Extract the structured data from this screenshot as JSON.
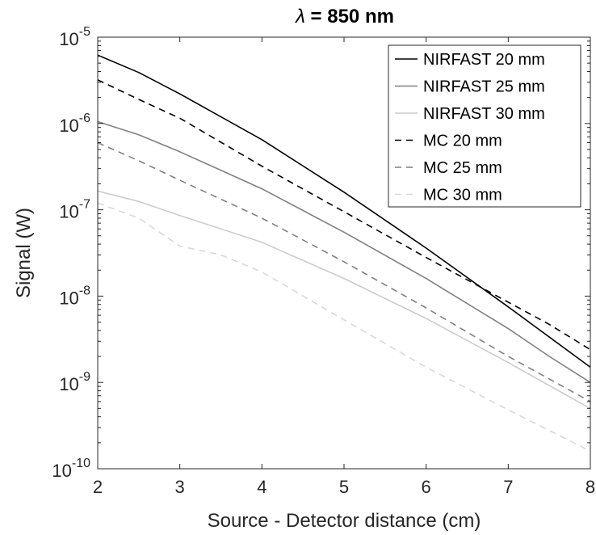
{
  "chart_data": {
    "type": "line",
    "title_symbol": "λ",
    "title_rest": " = 850 nm",
    "xlabel": "Source - Detector distance (cm)",
    "ylabel": "Signal (W)",
    "xlim": [
      2,
      8
    ],
    "ylim": [
      1e-10,
      1e-05
    ],
    "yscale": "log",
    "grid": false,
    "legend_position": "top-right",
    "x_ticks": [
      2,
      3,
      4,
      5,
      6,
      7,
      8
    ],
    "y_tick_exponents": [
      -10,
      -9,
      -8,
      -7,
      -6,
      -5
    ],
    "y_tick_base": "10",
    "series": [
      {
        "name": "NIRFAST 20 mm",
        "color": "#000000",
        "dash": "solid",
        "x": [
          2,
          2.5,
          3,
          4,
          5,
          6,
          7,
          8
        ],
        "y": [
          6.2e-06,
          3.9e-06,
          2.2e-06,
          6.5e-07,
          1.6e-07,
          3.6e-08,
          7.5e-09,
          1.5e-09
        ]
      },
      {
        "name": "NIRFAST 25 mm",
        "color": "#808080",
        "dash": "solid",
        "x": [
          2,
          2.5,
          3,
          4,
          5,
          6,
          7,
          7.5,
          8
        ],
        "y": [
          1.05e-06,
          7.4e-07,
          4.7e-07,
          1.75e-07,
          5.5e-08,
          1.6e-08,
          4.2e-09,
          2e-09,
          1e-09
        ]
      },
      {
        "name": "NIRFAST 30 mm",
        "color": "#cccccc",
        "dash": "solid",
        "x": [
          2,
          2.5,
          3,
          4,
          5,
          6,
          7,
          8
        ],
        "y": [
          1.65e-07,
          1.25e-07,
          8.6e-08,
          4.2e-08,
          1.6e-08,
          5.5e-09,
          1.7e-09,
          5e-10
        ]
      },
      {
        "name": "MC 20 mm",
        "color": "#000000",
        "dash": "dashed",
        "x": [
          2,
          2.5,
          3,
          4,
          5,
          6,
          7,
          7.5,
          8
        ],
        "y": [
          3.2e-06,
          1.9e-06,
          1.15e-06,
          3.2e-07,
          9.5e-08,
          2.8e-08,
          8.5e-09,
          4.7e-09,
          2.4e-09
        ]
      },
      {
        "name": "MC 25 mm",
        "color": "#808080",
        "dash": "dashed",
        "x": [
          2,
          2.5,
          3,
          4,
          5,
          6,
          7,
          8
        ],
        "y": [
          6e-07,
          3.7e-07,
          2.2e-07,
          8e-08,
          2.5e-08,
          7.3e-09,
          2e-09,
          6e-10
        ]
      },
      {
        "name": "MC 30 mm",
        "color": "#d9d9d9",
        "dash": "dashed",
        "x": [
          2,
          2.5,
          3,
          3.5,
          4,
          5,
          6,
          7,
          8
        ],
        "y": [
          1.2e-07,
          8e-08,
          3.8e-08,
          3e-08,
          1.9e-08,
          5.3e-09,
          1.5e-09,
          4.8e-10,
          1.6e-10
        ]
      }
    ]
  }
}
